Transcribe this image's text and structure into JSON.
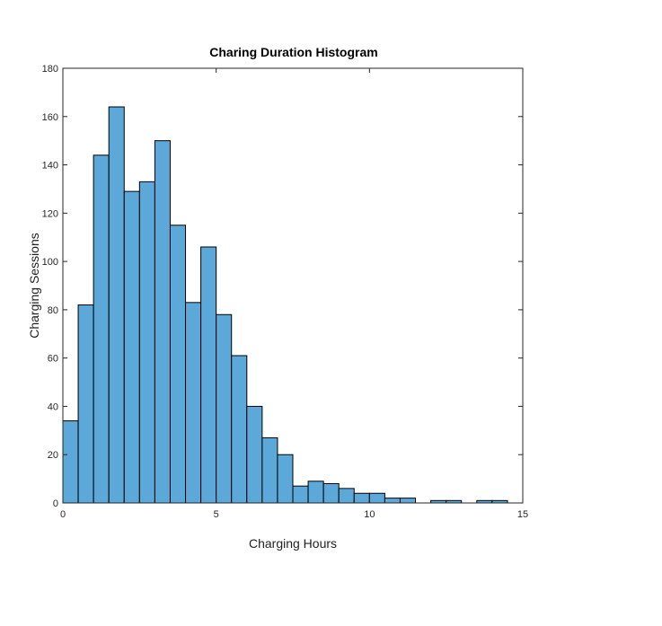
{
  "chart_data": {
    "type": "bar",
    "title": "Charing Duration Histogram",
    "xlabel": "Charging Hours",
    "ylabel": "Charging Sessions",
    "bin_width": 0.5,
    "x": [
      0,
      0.5,
      1,
      1.5,
      2,
      2.5,
      3,
      3.5,
      4,
      4.5,
      5,
      5.5,
      6,
      6.5,
      7,
      7.5,
      8,
      8.5,
      9,
      9.5,
      10,
      10.5,
      11,
      11.5,
      12,
      12.5,
      13,
      13.5,
      14
    ],
    "values": [
      34,
      82,
      144,
      164,
      129,
      133,
      150,
      115,
      83,
      106,
      78,
      61,
      40,
      27,
      20,
      7,
      9,
      8,
      6,
      4,
      4,
      2,
      2,
      0,
      1,
      1,
      0,
      1,
      1
    ],
    "xlim": [
      0,
      15
    ],
    "ylim": [
      0,
      180
    ],
    "xticks": [
      0,
      5,
      10,
      15
    ],
    "yticks": [
      0,
      20,
      40,
      60,
      80,
      100,
      120,
      140,
      160,
      180
    ],
    "bar_color": "#5ca8d8",
    "edge_color": "#000000",
    "grid": false
  }
}
